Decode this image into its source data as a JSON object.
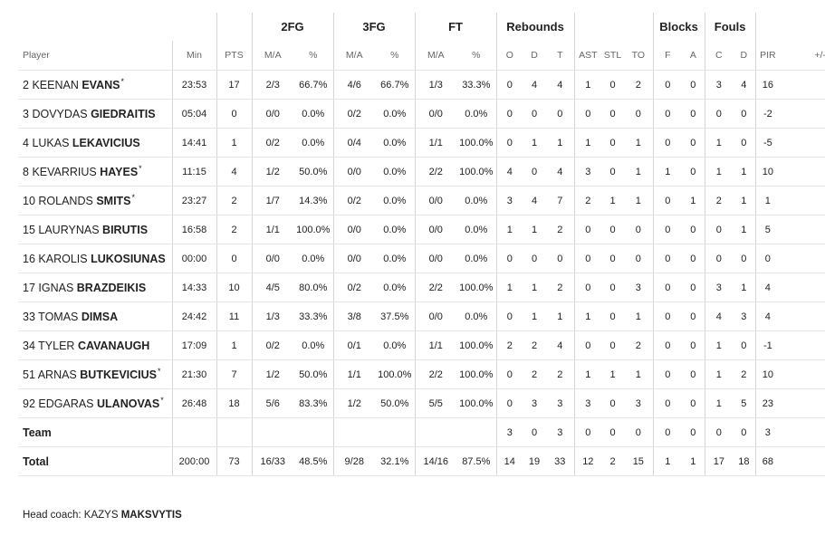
{
  "groups": {
    "fg2": "2FG",
    "fg3": "3FG",
    "ft": "FT",
    "rebounds": "Rebounds",
    "blocks": "Blocks",
    "fouls": "Fouls"
  },
  "columns": [
    "Player",
    "Min",
    "PTS",
    "M/A",
    "%",
    "M/A",
    "%",
    "M/A",
    "%",
    "O",
    "D",
    "T",
    "AST",
    "STL",
    "TO",
    "F",
    "A",
    "C",
    "D",
    "PIR",
    "+/-"
  ],
  "players": [
    {
      "num": "2",
      "first": "KEENAN",
      "last": "EVANS",
      "star": "*",
      "stats": [
        "23:53",
        "17",
        "2/3",
        "66.7%",
        "4/6",
        "66.7%",
        "1/3",
        "33.3%",
        "0",
        "4",
        "4",
        "1",
        "0",
        "2",
        "0",
        "0",
        "3",
        "4",
        "16",
        ""
      ]
    },
    {
      "num": "3",
      "first": "DOVYDAS",
      "last": "GIEDRAITIS",
      "star": "",
      "stats": [
        "05:04",
        "0",
        "0/0",
        "0.0%",
        "0/2",
        "0.0%",
        "0/0",
        "0.0%",
        "0",
        "0",
        "0",
        "0",
        "0",
        "0",
        "0",
        "0",
        "0",
        "0",
        "-2",
        ""
      ]
    },
    {
      "num": "4",
      "first": "LUKAS",
      "last": "LEKAVICIUS",
      "star": "",
      "stats": [
        "14:41",
        "1",
        "0/2",
        "0.0%",
        "0/4",
        "0.0%",
        "1/1",
        "100.0%",
        "0",
        "1",
        "1",
        "1",
        "0",
        "1",
        "0",
        "0",
        "1",
        "0",
        "-5",
        ""
      ]
    },
    {
      "num": "8",
      "first": "KEVARRIUS",
      "last": "HAYES",
      "star": "*",
      "stats": [
        "11:15",
        "4",
        "1/2",
        "50.0%",
        "0/0",
        "0.0%",
        "2/2",
        "100.0%",
        "4",
        "0",
        "4",
        "3",
        "0",
        "1",
        "1",
        "0",
        "1",
        "1",
        "10",
        ""
      ]
    },
    {
      "num": "10",
      "first": "ROLANDS",
      "last": "SMITS",
      "star": "*",
      "stats": [
        "23:27",
        "2",
        "1/7",
        "14.3%",
        "0/2",
        "0.0%",
        "0/0",
        "0.0%",
        "3",
        "4",
        "7",
        "2",
        "1",
        "1",
        "0",
        "1",
        "2",
        "1",
        "1",
        ""
      ]
    },
    {
      "num": "15",
      "first": "LAURYNAS",
      "last": "BIRUTIS",
      "star": "",
      "stats": [
        "16:58",
        "2",
        "1/1",
        "100.0%",
        "0/0",
        "0.0%",
        "0/0",
        "0.0%",
        "1",
        "1",
        "2",
        "0",
        "0",
        "0",
        "0",
        "0",
        "0",
        "1",
        "5",
        ""
      ]
    },
    {
      "num": "16",
      "first": "KAROLIS",
      "last": "LUKOSIUNAS",
      "star": "",
      "stats": [
        "00:00",
        "0",
        "0/0",
        "0.0%",
        "0/0",
        "0.0%",
        "0/0",
        "0.0%",
        "0",
        "0",
        "0",
        "0",
        "0",
        "0",
        "0",
        "0",
        "0",
        "0",
        "0",
        ""
      ]
    },
    {
      "num": "17",
      "first": "IGNAS",
      "last": "BRAZDEIKIS",
      "star": "",
      "stats": [
        "14:33",
        "10",
        "4/5",
        "80.0%",
        "0/2",
        "0.0%",
        "2/2",
        "100.0%",
        "1",
        "1",
        "2",
        "0",
        "0",
        "3",
        "0",
        "0",
        "3",
        "1",
        "4",
        ""
      ]
    },
    {
      "num": "33",
      "first": "TOMAS",
      "last": "DIMSA",
      "star": "",
      "stats": [
        "24:42",
        "11",
        "1/3",
        "33.3%",
        "3/8",
        "37.5%",
        "0/0",
        "0.0%",
        "0",
        "1",
        "1",
        "1",
        "0",
        "1",
        "0",
        "0",
        "4",
        "3",
        "4",
        ""
      ]
    },
    {
      "num": "34",
      "first": "TYLER",
      "last": "CAVANAUGH",
      "star": "",
      "stats": [
        "17:09",
        "1",
        "0/2",
        "0.0%",
        "0/1",
        "0.0%",
        "1/1",
        "100.0%",
        "2",
        "2",
        "4",
        "0",
        "0",
        "2",
        "0",
        "0",
        "1",
        "0",
        "-1",
        ""
      ]
    },
    {
      "num": "51",
      "first": "ARNAS",
      "last": "BUTKEVICIUS",
      "star": "*",
      "stats": [
        "21:30",
        "7",
        "1/2",
        "50.0%",
        "1/1",
        "100.0%",
        "2/2",
        "100.0%",
        "0",
        "2",
        "2",
        "1",
        "1",
        "1",
        "0",
        "0",
        "1",
        "2",
        "10",
        ""
      ]
    },
    {
      "num": "92",
      "first": "EDGARAS",
      "last": "ULANOVAS",
      "star": "*",
      "stats": [
        "26:48",
        "18",
        "5/6",
        "83.3%",
        "1/2",
        "50.0%",
        "5/5",
        "100.0%",
        "0",
        "3",
        "3",
        "3",
        "0",
        "3",
        "0",
        "0",
        "1",
        "5",
        "23",
        ""
      ]
    }
  ],
  "team": {
    "label": "Team",
    "stats": [
      "",
      "",
      "",
      "",
      "",
      "",
      "",
      "",
      "3",
      "0",
      "3",
      "0",
      "0",
      "0",
      "0",
      "0",
      "0",
      "0",
      "3",
      ""
    ]
  },
  "total": {
    "label": "Total",
    "stats": [
      "200:00",
      "73",
      "16/33",
      "48.5%",
      "9/28",
      "32.1%",
      "14/16",
      "87.5%",
      "14",
      "19",
      "33",
      "12",
      "2",
      "15",
      "1",
      "1",
      "17",
      "18",
      "68",
      ""
    ]
  },
  "coach": {
    "prefix": "Head coach:",
    "first": "KAZYS",
    "last": "MAKSVYTIS"
  }
}
